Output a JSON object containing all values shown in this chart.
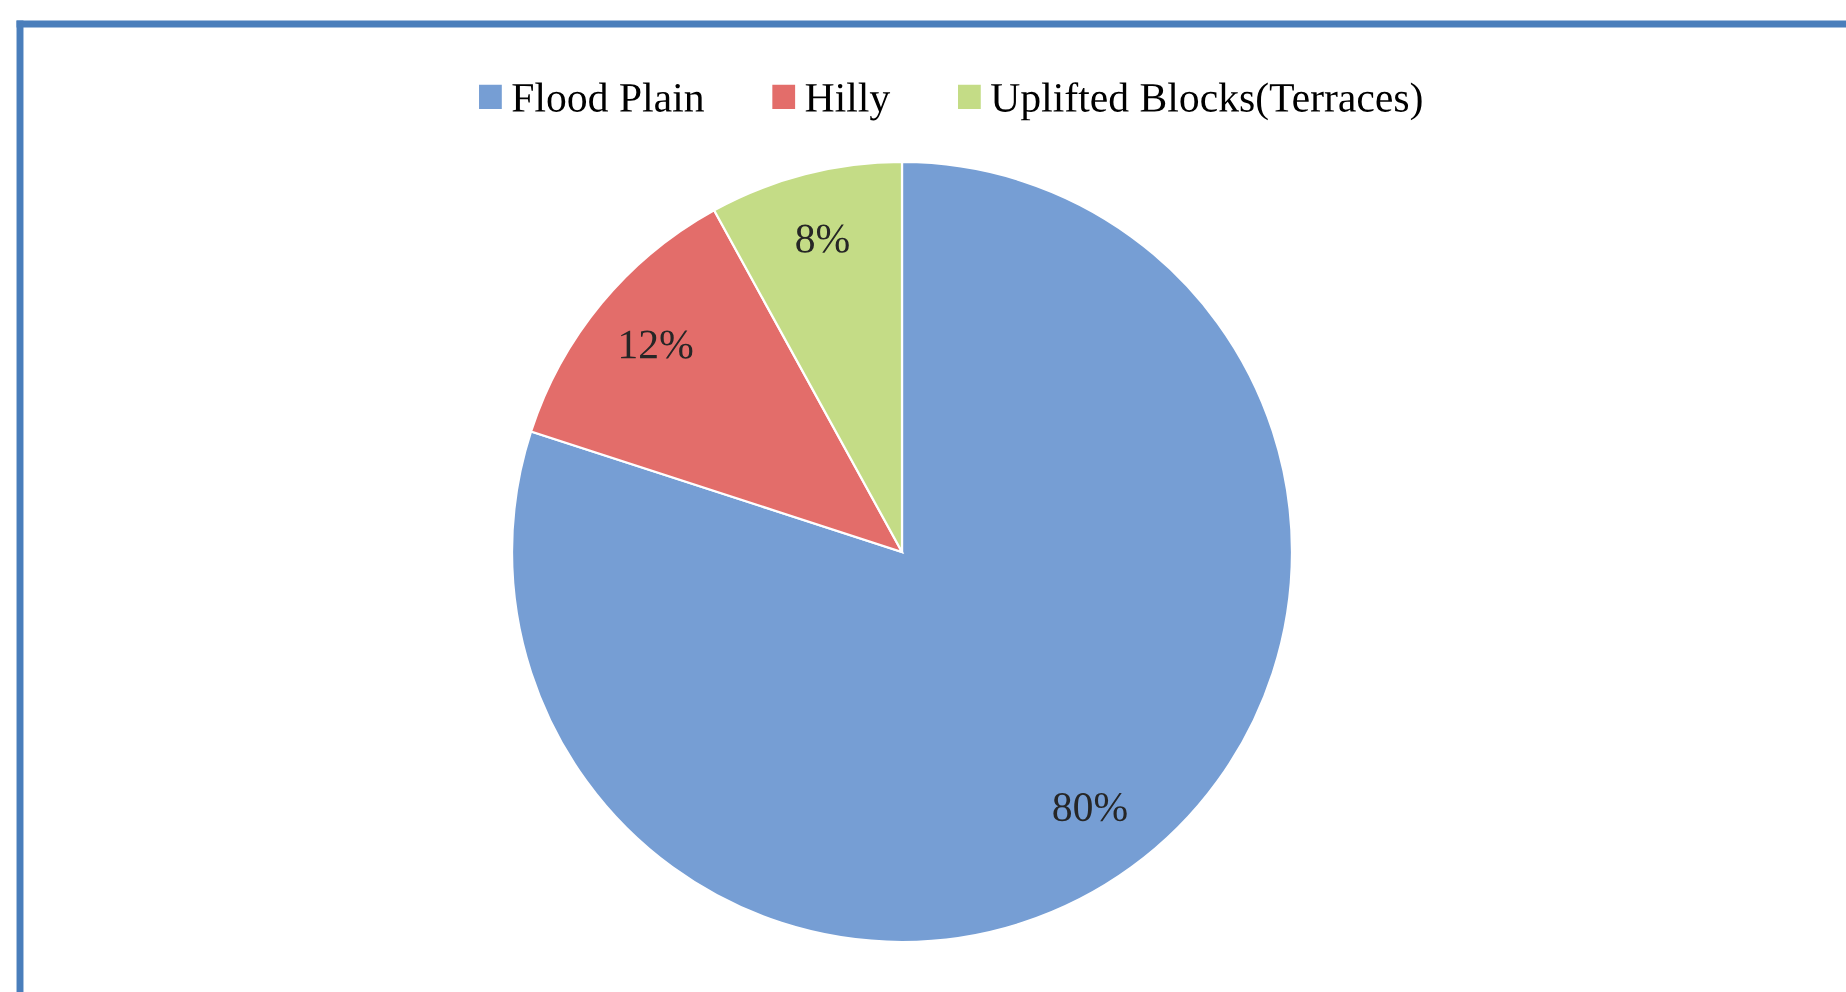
{
  "chart_data": {
    "type": "pie",
    "categories": [
      "Flood Plain",
      "Hilly",
      "Uplifted Blocks(Terraces)"
    ],
    "values": [
      80,
      12,
      8
    ],
    "colors": [
      "#769ed4",
      "#e36d6a",
      "#c4dc86"
    ],
    "value_labels": [
      "80%",
      "12%",
      "8%"
    ],
    "legend": "top"
  }
}
